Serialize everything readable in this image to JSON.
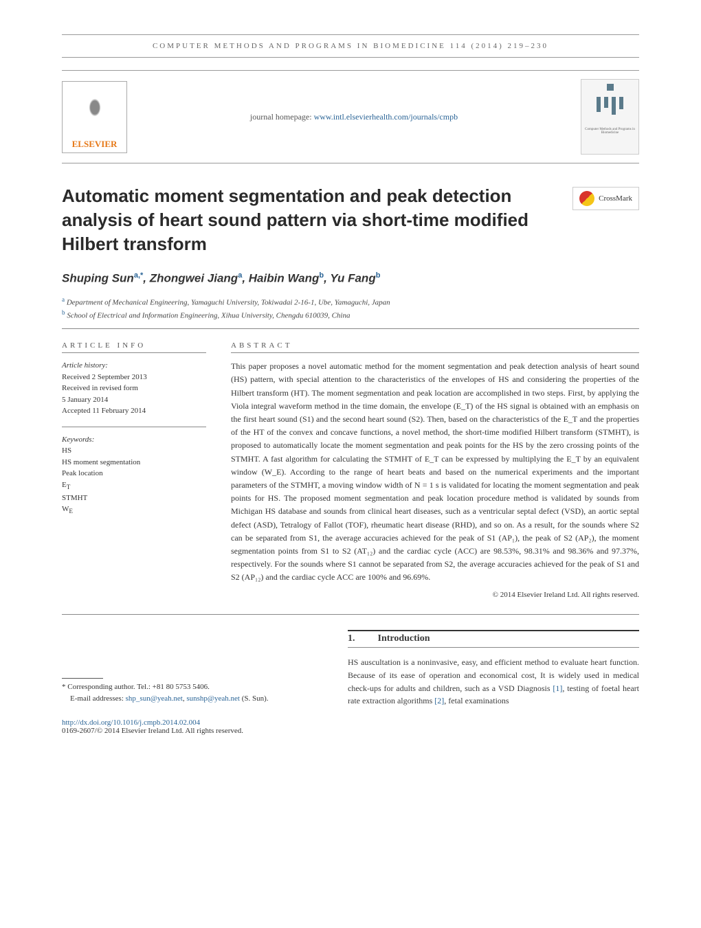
{
  "header": {
    "journal_ref": "computer methods and programs in biomedicine 114 (2014) 219–230"
  },
  "banner": {
    "publisher": "ELSEVIER",
    "homepage_label": "journal homepage:",
    "homepage_url": "www.intl.elsevierhealth.com/journals/cmpb"
  },
  "title": "Automatic moment segmentation and peak detection analysis of heart sound pattern via short-time modified Hilbert transform",
  "crossmark": "CrossMark",
  "authors_html": "Shuping Sun<sup>a,*</sup>, Zhongwei Jiang<sup>a</sup>, Haibin Wang<sup>b</sup>, Yu Fang<sup>b</sup>",
  "affiliations": [
    {
      "sup": "a",
      "text": "Department of Mechanical Engineering, Yamaguchi University, Tokiwadai 2-16-1, Ube, Yamaguchi, Japan"
    },
    {
      "sup": "b",
      "text": "School of Electrical and Information Engineering, Xihua University, Chengdu 610039, China"
    }
  ],
  "article_info": {
    "head": "article info",
    "history_label": "Article history:",
    "history": [
      "Received 2 September 2013",
      "Received in revised form",
      "5 January 2014",
      "Accepted 11 February 2014"
    ],
    "keywords_label": "Keywords:",
    "keywords": [
      "HS",
      "HS moment segmentation",
      "Peak location",
      "E_T",
      "STMHT",
      "W_E"
    ]
  },
  "abstract": {
    "head": "abstract",
    "text": "This paper proposes a novel automatic method for the moment segmentation and peak detection analysis of heart sound (HS) pattern, with special attention to the characteristics of the envelopes of HS and considering the properties of the Hilbert transform (HT). The moment segmentation and peak location are accomplished in two steps. First, by applying the Viola integral waveform method in the time domain, the envelope (E_T) of the HS signal is obtained with an emphasis on the first heart sound (S1) and the second heart sound (S2). Then, based on the characteristics of the E_T and the properties of the HT of the convex and concave functions, a novel method, the short-time modified Hilbert transform (STMHT), is proposed to automatically locate the moment segmentation and peak points for the HS by the zero crossing points of the STMHT. A fast algorithm for calculating the STMHT of E_T can be expressed by multiplying the E_T by an equivalent window (W_E). According to the range of heart beats and based on the numerical experiments and the important parameters of the STMHT, a moving window width of N = 1 s is validated for locating the moment segmentation and peak points for HS. The proposed moment segmentation and peak location procedure method is validated by sounds from Michigan HS database and sounds from clinical heart diseases, such as a ventricular septal defect (VSD), an aortic septal defect (ASD), Tetralogy of Fallot (TOF), rheumatic heart disease (RHD), and so on. As a result, for the sounds where S2 can be separated from S1, the average accuracies achieved for the peak of S1 (AP₁), the peak of S2 (AP₂), the moment segmentation points from S1 to S2 (AT₁₂) and the cardiac cycle (ACC) are 98.53%, 98.31% and 98.36% and 97.37%, respectively. For the sounds where S1 cannot be separated from S2, the average accuracies achieved for the peak of S1 and S2 (AP₁₂) and the cardiac cycle ACC are 100% and 96.69%.",
    "copyright": "© 2014 Elsevier Ireland Ltd. All rights reserved."
  },
  "intro": {
    "num": "1.",
    "title": "Introduction",
    "text": "HS auscultation is a noninvasive, easy, and efficient method to evaluate heart function. Because of its ease of operation and economical cost, It is widely used in medical check-ups for adults and children, such as a VSD Diagnosis [1], testing of foetal heart rate extraction algorithms [2], fetal examinations"
  },
  "footnote": {
    "corr": "Corresponding author",
    "tel": "Tel.: +81 80 5753 5406.",
    "email_label": "E-mail addresses:",
    "emails": [
      "shp_sun@yeah.net",
      "sunshp@yeah.net"
    ],
    "email_attrib": "(S. Sun)."
  },
  "doi": {
    "url": "http://dx.doi.org/10.1016/j.cmpb.2014.02.004",
    "issn": "0169-2607/© 2014 Elsevier Ireland Ltd. All rights reserved."
  }
}
